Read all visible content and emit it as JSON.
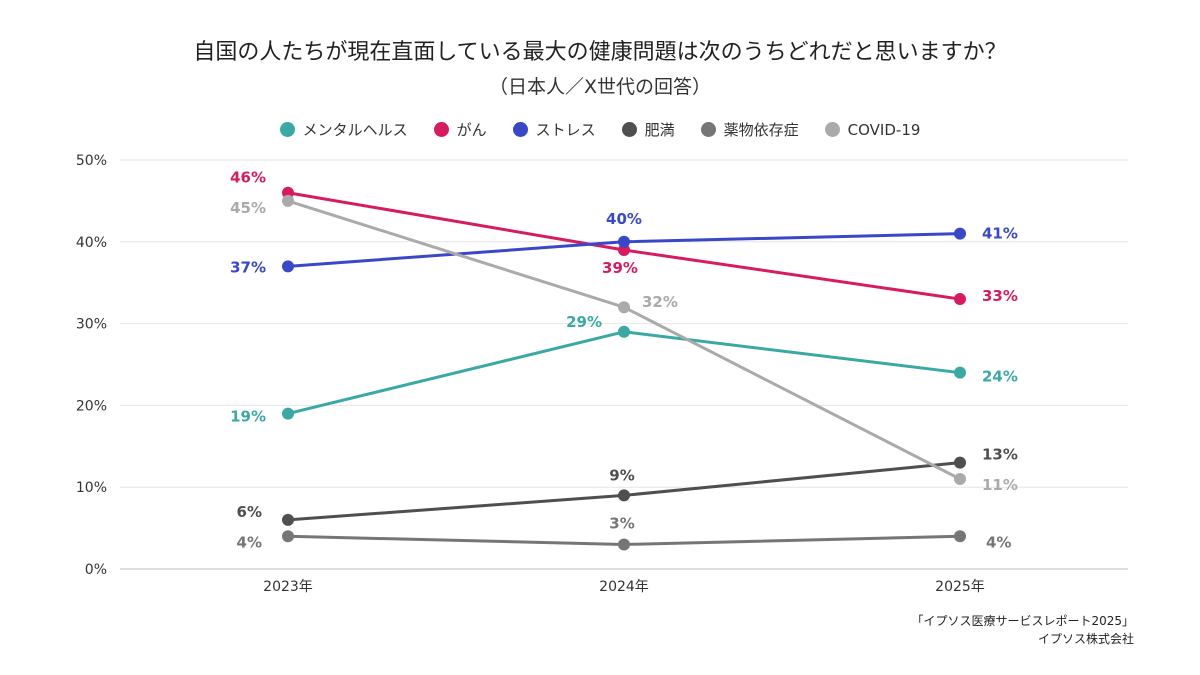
{
  "chart_data": {
    "type": "line",
    "title": "自国の人たちが現在直面している最大の健康問題は次のうちどれだと思いますか？",
    "subtitle": "（日本人／X世代の回答）",
    "categories": [
      "2023年",
      "2024年",
      "2025年"
    ],
    "ylim": [
      0,
      50
    ],
    "yticks": [
      "0%",
      "10%",
      "20%",
      "30%",
      "40%",
      "50%"
    ],
    "ytick_values": [
      0,
      10,
      20,
      30,
      40,
      50
    ],
    "grid": true,
    "legend_position": "top-center",
    "series": [
      {
        "name": "メンタルヘルス",
        "color": "#3aa9a4",
        "values": [
          19,
          29,
          24
        ],
        "labels": [
          "19%",
          "29%",
          "24%"
        ]
      },
      {
        "name": "がん",
        "color": "#d81b60",
        "values": [
          46,
          39,
          33
        ],
        "labels": [
          "46%",
          "39%",
          "33%"
        ]
      },
      {
        "name": "ストレス",
        "color": "#3848c8",
        "values": [
          37,
          40,
          41
        ],
        "labels": [
          "37%",
          "40%",
          "41%"
        ]
      },
      {
        "name": "肥満",
        "color": "#4f4f4f",
        "values": [
          6,
          9,
          13
        ],
        "labels": [
          "6%",
          "9%",
          "13%"
        ]
      },
      {
        "name": "薬物依存症",
        "color": "#767676",
        "values": [
          4,
          3,
          4
        ],
        "labels": [
          "4%",
          "3%",
          "4%"
        ]
      },
      {
        "name": "COVID-19",
        "color": "#aaaaaa",
        "values": [
          45,
          32,
          11
        ],
        "labels": [
          "45%",
          "32%",
          "11%"
        ]
      }
    ]
  },
  "source": {
    "line1": "「イプソス医療サービスレポート2025」",
    "line2": "イプソス株式会社"
  }
}
